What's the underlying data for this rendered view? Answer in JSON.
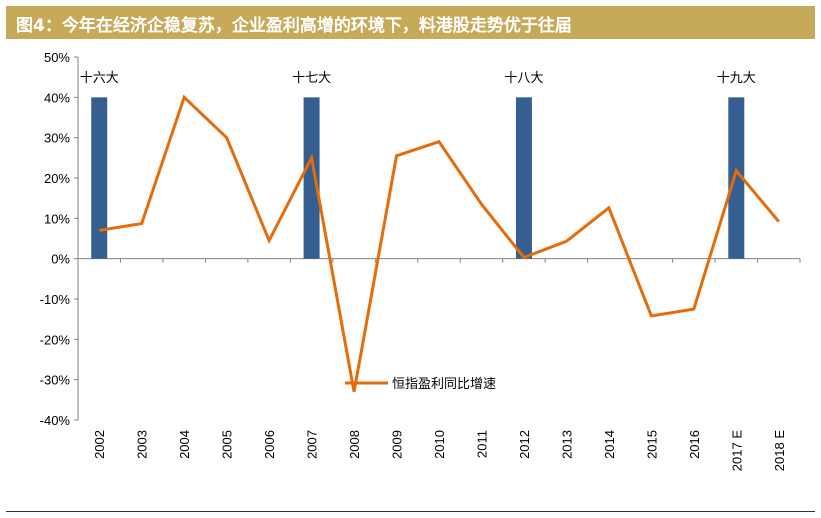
{
  "banner": {
    "title": "图4：今年在经济企稳复苏，企业盈利高增的环境下，料港股走势优于往届"
  },
  "chart_data": {
    "type": "bar+line",
    "title": "图4：今年在经济企稳复苏，企业盈利高增的环境下，料港股走势优于往届",
    "categories": [
      "2002",
      "2003",
      "2004",
      "2005",
      "2006",
      "2007",
      "2008",
      "2009",
      "2010",
      "2011",
      "2012",
      "2013",
      "2014",
      "2015",
      "2016",
      "2017 E",
      "2018 E"
    ],
    "y_ticks": [
      "50%",
      "40%",
      "30%",
      "20%",
      "10%",
      "0%",
      "-10%",
      "-20%",
      "-30%",
      "-40%"
    ],
    "ylim": [
      -40,
      50
    ],
    "y_unit": "%",
    "grid": false,
    "bar_color": "#365f91",
    "line_color": "#e46c0a",
    "bars": [
      {
        "category": "2002",
        "value": 40,
        "label": "十六大"
      },
      {
        "category": "2007",
        "value": 40,
        "label": "十七大"
      },
      {
        "category": "2012",
        "value": 40,
        "label": "十八大"
      },
      {
        "category": "2017 E",
        "value": 40,
        "label": "十九大"
      }
    ],
    "series": [
      {
        "name": "恒指盈利同比增速",
        "values": [
          7,
          8.7,
          40,
          30,
          4.5,
          25,
          -33,
          25.5,
          29,
          13.5,
          0.3,
          4.3,
          12.6,
          -14.2,
          -12.5,
          21.8,
          9.2
        ]
      }
    ],
    "legend_position": "bottom-center"
  }
}
